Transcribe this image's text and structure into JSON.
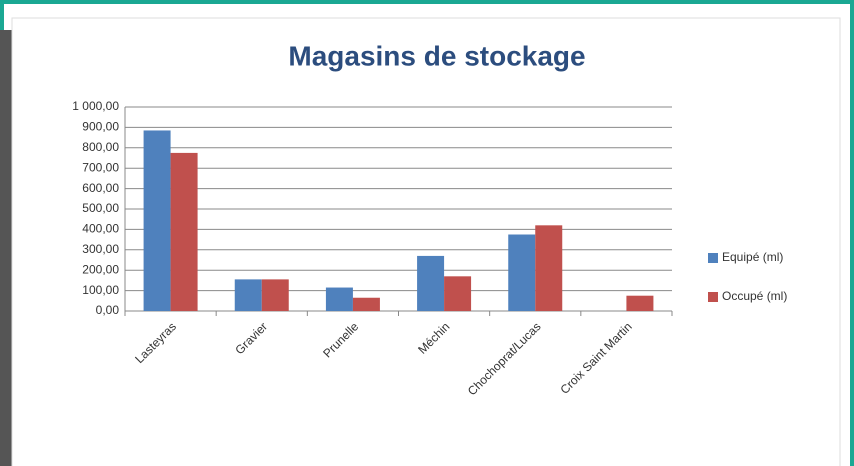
{
  "chart_data": {
    "type": "bar",
    "title": "Magasins de stockage",
    "categories": [
      "Lasteyras",
      "Gravier",
      "Prunelle",
      "Méchin",
      "Chochoprat/Lucas",
      "Croix Saint Martin"
    ],
    "series": [
      {
        "name": "Equipé (ml)",
        "color": "#4f81bd",
        "values": [
          885,
          155,
          115,
          270,
          375,
          null
        ]
      },
      {
        "name": "Occupé (ml)",
        "color": "#c0504d",
        "values": [
          775,
          155,
          65,
          170,
          420,
          75
        ]
      }
    ],
    "ylim": [
      0,
      1000
    ],
    "yticks": [
      {
        "value": 0,
        "label": "0,00"
      },
      {
        "value": 100,
        "label": "100,00"
      },
      {
        "value": 200,
        "label": "200,00"
      },
      {
        "value": 300,
        "label": "300,00"
      },
      {
        "value": 400,
        "label": "400,00"
      },
      {
        "value": 500,
        "label": "500,00"
      },
      {
        "value": 600,
        "label": "600,00"
      },
      {
        "value": 700,
        "label": "700,00"
      },
      {
        "value": 800,
        "label": "800,00"
      },
      {
        "value": 900,
        "label": "900,00"
      },
      {
        "value": 1000,
        "label": "1 000,00"
      }
    ],
    "grid": true,
    "legend": "right"
  }
}
